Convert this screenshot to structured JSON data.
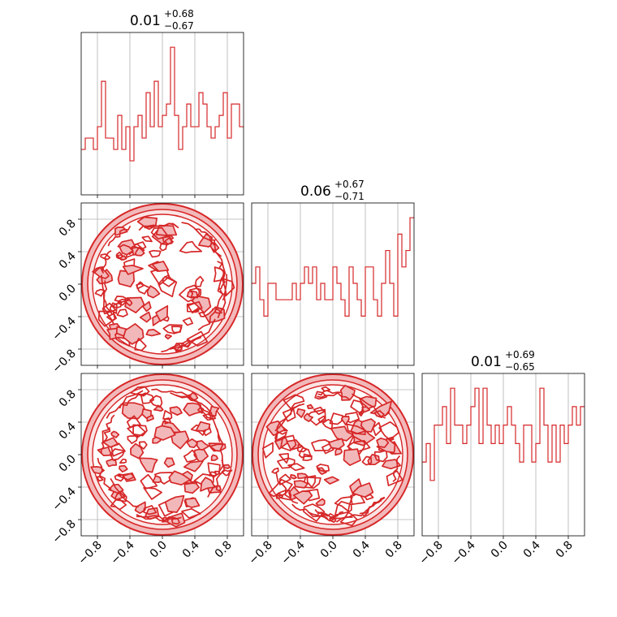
{
  "chart_data": {
    "type": "corner",
    "color": "#d62728",
    "contour_fill": "#f2b8b9",
    "grid": true,
    "range": [
      -1,
      1
    ],
    "tick_values": [
      -0.8,
      -0.4,
      0.0,
      0.4,
      0.8
    ],
    "tick_labels": [
      "−0.8",
      "−0.4",
      "0.0",
      "0.4",
      "0.8"
    ],
    "parameters": [
      {
        "title": {
          "median": "0.01",
          "plus": "+0.68",
          "minus": "−0.67"
        },
        "histogram": {
          "bins": 40,
          "counts": [
            4,
            5,
            5,
            4,
            6,
            10,
            5,
            5,
            4,
            7,
            4,
            6,
            3,
            6,
            7,
            5,
            9,
            6,
            10,
            6,
            7,
            8,
            13,
            7,
            4,
            6,
            8,
            6,
            6,
            9,
            8,
            6,
            5,
            6,
            7,
            9,
            5,
            8,
            8,
            6
          ]
        }
      },
      {
        "title": {
          "median": "0.06",
          "plus": "+0.67",
          "minus": "−0.71"
        },
        "histogram": {
          "bins": 40,
          "counts": [
            5,
            6,
            4,
            3,
            5,
            5,
            4,
            4,
            4,
            4,
            5,
            4,
            5,
            6,
            5,
            6,
            4,
            5,
            4,
            4,
            6,
            5,
            4,
            3,
            6,
            5,
            4,
            3,
            6,
            6,
            4,
            3,
            5,
            7,
            5,
            3,
            8,
            6,
            7,
            9
          ]
        }
      },
      {
        "title": {
          "median": "0.01",
          "plus": "+0.69",
          "minus": "−0.65"
        },
        "histogram": {
          "bins": 40,
          "counts": [
            4,
            5,
            3,
            6,
            6,
            7,
            5,
            8,
            6,
            6,
            5,
            6,
            7,
            8,
            5,
            8,
            6,
            5,
            6,
            5,
            6,
            7,
            6,
            5,
            4,
            6,
            6,
            4,
            5,
            8,
            6,
            4,
            6,
            4,
            6,
            5,
            6,
            7,
            6,
            7
          ]
        }
      }
    ],
    "pair_panels": [
      {
        "row": 1,
        "col": 0,
        "x_param": 0,
        "y_param": 1,
        "support": "unit-disk"
      },
      {
        "row": 2,
        "col": 0,
        "x_param": 0,
        "y_param": 2,
        "support": "unit-disk"
      },
      {
        "row": 2,
        "col": 1,
        "x_param": 1,
        "y_param": 2,
        "support": "unit-disk"
      }
    ]
  }
}
